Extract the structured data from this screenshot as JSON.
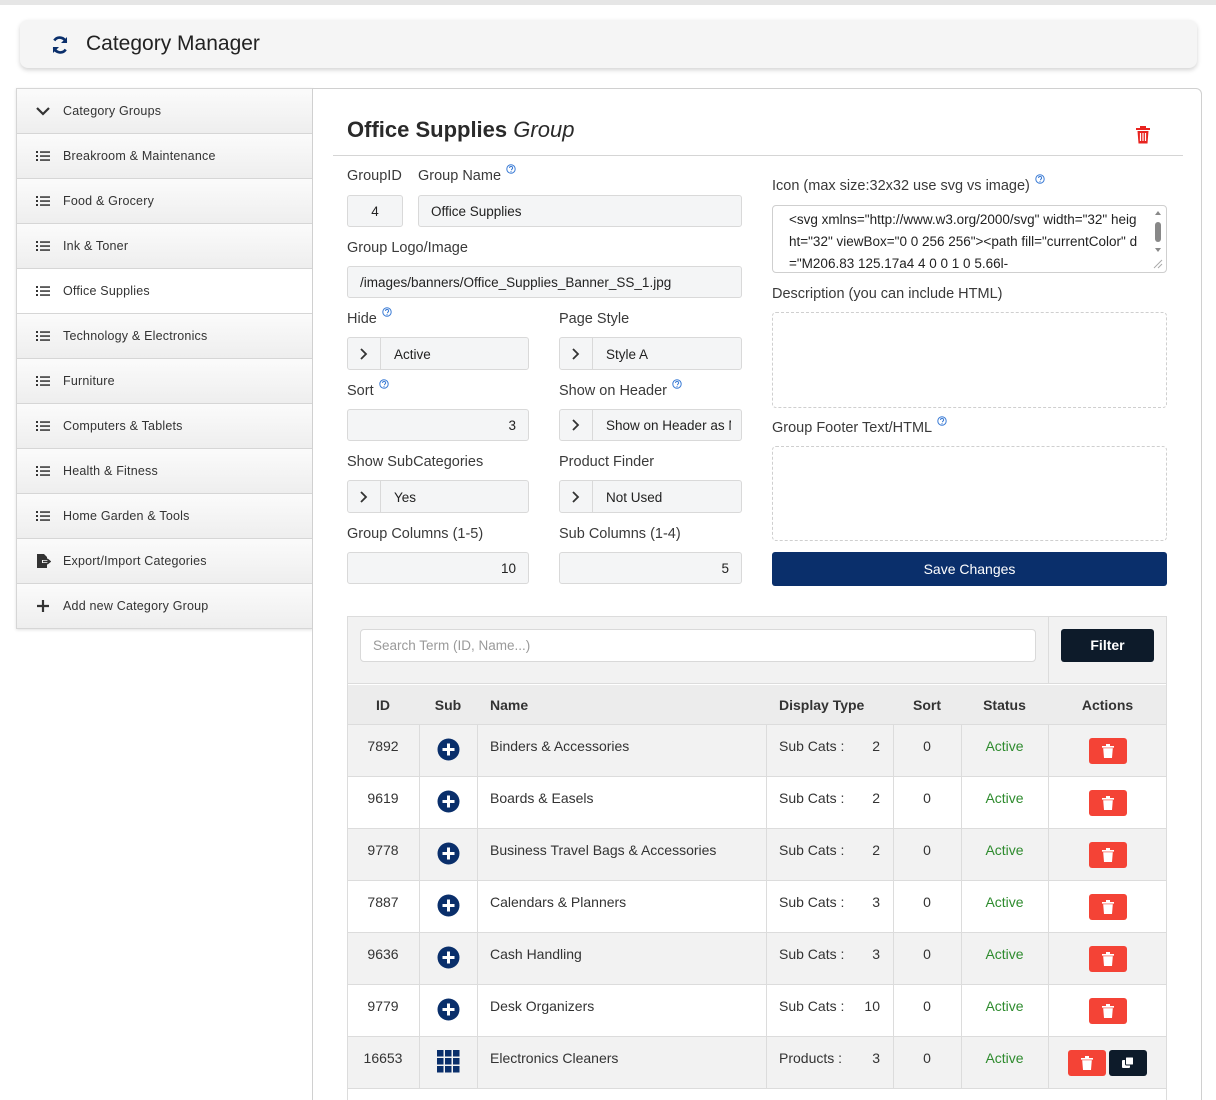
{
  "header": {
    "title": "Category Manager"
  },
  "sidebar": {
    "items": [
      {
        "label": "Category Groups",
        "icon": "chevron"
      },
      {
        "label": "Breakroom & Maintenance",
        "icon": "list"
      },
      {
        "label": "Food & Grocery",
        "icon": "list"
      },
      {
        "label": "Ink & Toner",
        "icon": "list"
      },
      {
        "label": "Office Supplies",
        "icon": "list",
        "active": true
      },
      {
        "label": "Technology & Electronics",
        "icon": "list"
      },
      {
        "label": "Furniture",
        "icon": "list"
      },
      {
        "label": "Computers & Tablets",
        "icon": "list"
      },
      {
        "label": "Health & Fitness",
        "icon": "list"
      },
      {
        "label": "Home Garden & Tools",
        "icon": "list"
      },
      {
        "label": "Export/Import Categories",
        "icon": "export"
      },
      {
        "label": "Add new Category Group",
        "icon": "plus"
      }
    ]
  },
  "form": {
    "title": "Office Supplies",
    "title_suffix": "Group",
    "fields": {
      "group_id": {
        "label": "GroupID",
        "value": "4"
      },
      "group_name": {
        "label": "Group Name",
        "value": "Office Supplies",
        "help": true
      },
      "logo": {
        "label": "Group Logo/Image",
        "value": "/images/banners/Office_Supplies_Banner_SS_1.jpg"
      },
      "hide": {
        "label": "Hide",
        "value": "Active",
        "help": true
      },
      "page_style": {
        "label": "Page Style",
        "value": "Style A"
      },
      "sort": {
        "label": "Sort",
        "value": "3",
        "help": true
      },
      "show_on_header": {
        "label": "Show on Header",
        "value": "Show on Header as M",
        "help": true
      },
      "show_subcategories": {
        "label": "Show SubCategories",
        "value": "Yes"
      },
      "product_finder": {
        "label": "Product Finder",
        "value": "Not Used"
      },
      "group_columns": {
        "label": "Group Columns (1-5)",
        "value": "10"
      },
      "sub_columns": {
        "label": "Sub Columns (1-4)",
        "value": "5"
      },
      "icon": {
        "label": "Icon (max size:32x32 use svg vs image)",
        "value": "<svg xmlns=\"http://www.w3.org/2000/svg\" width=\"32\" height=\"32\" viewBox=\"0 0 256 256\"><path fill=\"currentColor\" d=\"M206.83 125.17a4 4 0 0 1 0 5.66l-",
        "help": true
      },
      "description": {
        "label": "Description (you can include HTML)",
        "value": ""
      },
      "footer": {
        "label": "Group Footer Text/HTML",
        "value": "",
        "help": true
      }
    },
    "save_button": "Save Changes"
  },
  "table": {
    "search_placeholder": "Search Term (ID, Name...)",
    "filter_button": "Filter",
    "columns": [
      "ID",
      "Sub",
      "Name",
      "Display Type",
      "Sort",
      "Status",
      "Actions"
    ],
    "rows": [
      {
        "id": 7892,
        "sub": "plus",
        "name": "Binders & Accessories",
        "display_type": "Sub Cats :",
        "count": 2,
        "sort": 0,
        "status": "Active",
        "actions": [
          "delete"
        ]
      },
      {
        "id": 9619,
        "sub": "plus",
        "name": "Boards & Easels",
        "display_type": "Sub Cats :",
        "count": 2,
        "sort": 0,
        "status": "Active",
        "actions": [
          "delete"
        ]
      },
      {
        "id": 9778,
        "sub": "plus",
        "name": "Business Travel Bags & Accessories",
        "display_type": "Sub Cats :",
        "count": 2,
        "sort": 0,
        "status": "Active",
        "actions": [
          "delete"
        ]
      },
      {
        "id": 7887,
        "sub": "plus",
        "name": "Calendars & Planners",
        "display_type": "Sub Cats :",
        "count": 3,
        "sort": 0,
        "status": "Active",
        "actions": [
          "delete"
        ]
      },
      {
        "id": 9636,
        "sub": "plus",
        "name": "Cash Handling",
        "display_type": "Sub Cats :",
        "count": 3,
        "sort": 0,
        "status": "Active",
        "actions": [
          "delete"
        ]
      },
      {
        "id": 9779,
        "sub": "plus",
        "name": "Desk Organizers",
        "display_type": "Sub Cats :",
        "count": 10,
        "sort": 0,
        "status": "Active",
        "actions": [
          "delete"
        ]
      },
      {
        "id": 16653,
        "sub": "grid",
        "name": "Electronics Cleaners",
        "display_type": "Products :",
        "count": 3,
        "sort": 0,
        "status": "Active",
        "actions": [
          "delete",
          "copy"
        ]
      }
    ]
  }
}
